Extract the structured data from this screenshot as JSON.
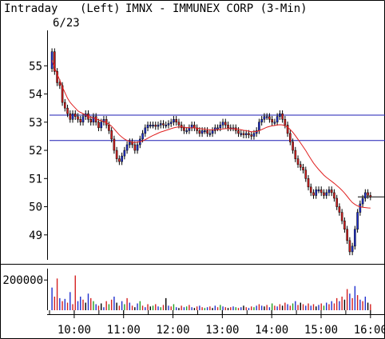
{
  "header": {
    "mode": "Intraday",
    "date": "6/23",
    "axis_side": "(Left)",
    "symbol_line": "IMNX - IMMUNEX CORP (3-Min)"
  },
  "colors": {
    "up_candle": "#1f2fcf",
    "down_candle": "#d42020",
    "moving_average": "#e02020",
    "reference_lines": "#1c1cb4",
    "volume_bars": [
      "#1f2fcf",
      "#d42020",
      "#20a020",
      "#000000"
    ]
  },
  "chart_data": [
    {
      "type": "candlestick",
      "title": "IMNX - IMMUNEX CORP (3-Min)",
      "ylim": [
        48.2,
        56.2
      ],
      "y_ticks": [
        "49",
        "50",
        "51",
        "52",
        "53",
        "54",
        "55"
      ],
      "x_ticks": [
        "10:00",
        "11:00",
        "12:00",
        "13:00",
        "14:00",
        "15:00",
        "16:00"
      ],
      "x_range_hours": [
        9.5,
        16.1
      ],
      "horizontal_lines": [
        53.25,
        52.35,
        50.35
      ],
      "candle_interval_minutes": 3,
      "closes": [
        55.5,
        54.8,
        54.4,
        54.3,
        53.7,
        53.5,
        53.3,
        53.1,
        53.3,
        53.2,
        53.1,
        53.0,
        53.2,
        53.3,
        53.1,
        53.0,
        53.2,
        53.0,
        52.8,
        53.0,
        53.1,
        52.9,
        52.7,
        52.4,
        52.0,
        51.7,
        51.6,
        51.8,
        52.0,
        52.2,
        52.3,
        52.2,
        52.0,
        52.2,
        52.4,
        52.6,
        52.8,
        52.9,
        52.9,
        52.9,
        52.85,
        52.9,
        52.95,
        52.9,
        52.9,
        52.95,
        53.0,
        53.1,
        53.0,
        52.9,
        52.8,
        52.7,
        52.7,
        52.8,
        52.9,
        52.8,
        52.7,
        52.6,
        52.7,
        52.7,
        52.6,
        52.6,
        52.7,
        52.8,
        52.8,
        52.9,
        53.0,
        52.9,
        52.8,
        52.8,
        52.8,
        52.7,
        52.6,
        52.6,
        52.55,
        52.6,
        52.55,
        52.5,
        52.6,
        52.7,
        53.0,
        53.1,
        53.2,
        53.2,
        53.1,
        53.0,
        53.0,
        53.2,
        53.3,
        53.1,
        52.9,
        52.6,
        52.3,
        52.0,
        51.7,
        51.5,
        51.4,
        51.3,
        51.0,
        50.7,
        50.5,
        50.4,
        50.6,
        50.6,
        50.5,
        50.4,
        50.5,
        50.6,
        50.5,
        50.3,
        50.0,
        49.8,
        49.5,
        49.2,
        48.8,
        48.4,
        48.6,
        49.2,
        49.8,
        50.1,
        50.3,
        50.5,
        50.4,
        50.35
      ],
      "moving_average": [
        55.2,
        54.95,
        54.7,
        54.5,
        54.25,
        54.05,
        53.85,
        53.7,
        53.6,
        53.5,
        53.4,
        53.35,
        53.3,
        53.25,
        53.2,
        53.18,
        53.15,
        53.12,
        53.08,
        53.05,
        53.02,
        52.98,
        52.93,
        52.86,
        52.76,
        52.65,
        52.55,
        52.47,
        52.4,
        52.35,
        52.32,
        52.3,
        52.28,
        52.29,
        52.31,
        52.34,
        52.38,
        52.43,
        52.48,
        52.53,
        52.57,
        52.61,
        52.65,
        52.68,
        52.71,
        52.74,
        52.77,
        52.8,
        52.82,
        52.83,
        52.83,
        52.82,
        52.81,
        52.8,
        52.8,
        52.8,
        52.79,
        52.77,
        52.76,
        52.75,
        52.74,
        52.73,
        52.73,
        52.73,
        52.74,
        52.75,
        52.76,
        52.77,
        52.77,
        52.77,
        52.77,
        52.76,
        52.75,
        52.73,
        52.71,
        52.7,
        52.68,
        52.66,
        52.66,
        52.67,
        52.7,
        52.74,
        52.78,
        52.82,
        52.85,
        52.87,
        52.88,
        52.9,
        52.91,
        52.9,
        52.87,
        52.82,
        52.74,
        52.64,
        52.52,
        52.39,
        52.26,
        52.13,
        51.99,
        51.84,
        51.69,
        51.55,
        51.43,
        51.32,
        51.22,
        51.12,
        51.04,
        50.97,
        50.9,
        50.83,
        50.75,
        50.67,
        50.58,
        50.48,
        50.37,
        50.25,
        50.15,
        50.08,
        50.03,
        50.0,
        49.98,
        49.97,
        49.96,
        49.95
      ]
    },
    {
      "type": "bar",
      "title": "",
      "ylim": [
        0,
        270000
      ],
      "y_ticks": [
        "200000"
      ],
      "x_ticks": [
        "10:00",
        "11:00",
        "12:00",
        "13:00",
        "14:00",
        "15:00",
        "16:00"
      ],
      "values": [
        150000,
        90000,
        210000,
        80000,
        60000,
        75000,
        50000,
        120000,
        40000,
        230000,
        60000,
        90000,
        70000,
        50000,
        110000,
        80000,
        60000,
        40000,
        30000,
        45000,
        20000,
        60000,
        40000,
        70000,
        90000,
        50000,
        30000,
        60000,
        40000,
        80000,
        50000,
        30000,
        20000,
        45000,
        60000,
        30000,
        20000,
        40000,
        25000,
        30000,
        40000,
        25000,
        20000,
        35000,
        80000,
        30000,
        25000,
        40000,
        20000,
        15000,
        30000,
        20000,
        25000,
        35000,
        20000,
        15000,
        25000,
        30000,
        20000,
        15000,
        20000,
        25000,
        15000,
        30000,
        20000,
        35000,
        25000,
        20000,
        15000,
        20000,
        25000,
        20000,
        15000,
        20000,
        30000,
        20000,
        15000,
        25000,
        20000,
        30000,
        40000,
        30000,
        25000,
        35000,
        20000,
        45000,
        30000,
        25000,
        40000,
        30000,
        50000,
        40000,
        30000,
        45000,
        60000,
        35000,
        50000,
        40000,
        30000,
        45000,
        30000,
        40000,
        25000,
        35000,
        45000,
        30000,
        50000,
        40000,
        60000,
        45000,
        80000,
        60000,
        90000,
        70000,
        140000,
        110000,
        80000,
        160000,
        100000,
        70000,
        60000,
        90000,
        50000,
        40000
      ],
      "series_colors_index": [
        0,
        1,
        1,
        0,
        1,
        0,
        1,
        0,
        1,
        1,
        0,
        0,
        1,
        3,
        0,
        1,
        2,
        0,
        1,
        3,
        0,
        1,
        2,
        1,
        0,
        3,
        1,
        0,
        2,
        1,
        0,
        1,
        3,
        0,
        2,
        1,
        0,
        1,
        3,
        2,
        1,
        0,
        2,
        1,
        3,
        0,
        1,
        2,
        0,
        3,
        1,
        0,
        2,
        1,
        0,
        3,
        1,
        0,
        1,
        2,
        0,
        1,
        3,
        0,
        1,
        2,
        0,
        1,
        3,
        1,
        0,
        2,
        1,
        0,
        3,
        1,
        0,
        1,
        2,
        0,
        1,
        0,
        3,
        1,
        0,
        2,
        1,
        0,
        1,
        3,
        1,
        0,
        1,
        2,
        0,
        1,
        3,
        1,
        0,
        1,
        0,
        1,
        3,
        0,
        1,
        2,
        0,
        1,
        0,
        1,
        1,
        0,
        1,
        3,
        1,
        0,
        1,
        0,
        1,
        0,
        1,
        0,
        3,
        1
      ]
    }
  ]
}
